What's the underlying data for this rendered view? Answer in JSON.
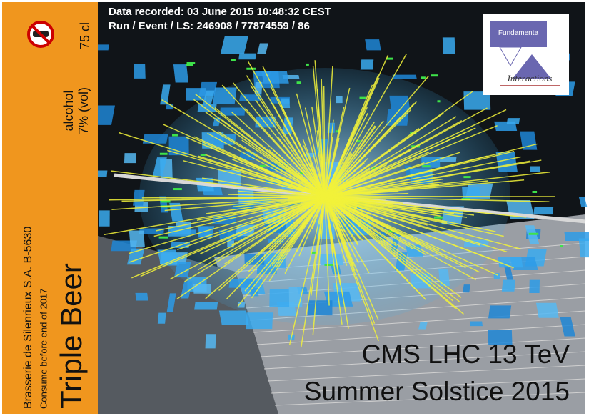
{
  "header": {
    "recorded": "Data recorded: 03 June 2015 10:48:32 CEST",
    "run": "Run / Event / LS: 246908 / 77874559 / 86"
  },
  "label": {
    "volume": "75 cl",
    "alcohol": "alcohol",
    "strength": "7% (vol)",
    "brewery": "Brasserie de Silenrieux S.A. B-5630",
    "consume": "Consume before end of 2017",
    "name": "Triple Beer"
  },
  "logo": {
    "top": "Fundamenta",
    "bottom": "Interactions"
  },
  "caption": {
    "line1": "CMS LHC 13 TeV",
    "line2": "Summer Solstice 2015"
  }
}
